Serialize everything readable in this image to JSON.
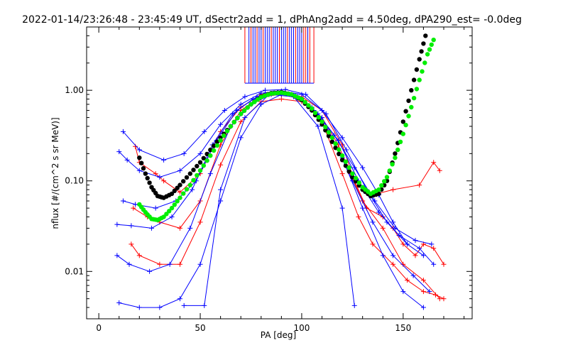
{
  "chart_data": {
    "type": "scatter",
    "title": "2022-01-14/23:26:48 - 23:45:49 UT, dSectr2add = 1, dPhAng2add = 4.50deg, dPA290_est=  -0.0deg",
    "xlabel": "PA [deg]",
    "ylabel": "nflux [#/(cm^2 s sr MeV)]",
    "xlim": [
      -6,
      184
    ],
    "ylim": [
      0.003,
      5
    ],
    "yscale": "log",
    "x_ticks": [
      0,
      50,
      100,
      150
    ],
    "x_tick_labels": [
      "0",
      "50",
      "100",
      "150"
    ],
    "y_ticks": [
      0.01,
      0.1,
      1.0
    ],
    "y_tick_labels": [
      "0.01",
      "0.10",
      "1.00"
    ],
    "grid": false,
    "legend": "none",
    "colors": {
      "red": "#ff0000",
      "blue": "#0000ff",
      "green": "#00ee00",
      "black": "#000000"
    },
    "series": [
      {
        "color": "red",
        "points": [
          [
            18,
            0.24
          ],
          [
            20,
            0.16
          ],
          [
            28,
            0.12
          ],
          [
            32,
            0.1
          ],
          [
            40,
            0.075
          ],
          [
            50,
            0.12
          ],
          [
            60,
            0.35
          ],
          [
            70,
            0.65
          ],
          [
            80,
            0.9
          ],
          [
            90,
            0.95
          ],
          [
            100,
            0.85
          ],
          [
            110,
            0.6
          ],
          [
            120,
            0.25
          ],
          [
            126,
            0.1
          ],
          [
            132,
            0.05
          ],
          [
            140,
            0.04
          ],
          [
            145,
            0.03
          ],
          [
            150,
            0.02
          ],
          [
            156,
            0.015
          ],
          [
            160,
            0.02
          ],
          [
            165,
            0.018
          ],
          [
            170,
            0.012
          ]
        ]
      },
      {
        "color": "red",
        "points": [
          [
            17,
            0.05
          ],
          [
            24,
            0.04
          ],
          [
            30,
            0.035
          ],
          [
            40,
            0.03
          ],
          [
            50,
            0.06
          ],
          [
            60,
            0.25
          ],
          [
            70,
            0.6
          ],
          [
            80,
            0.85
          ],
          [
            90,
            0.9
          ],
          [
            100,
            0.8
          ],
          [
            110,
            0.45
          ],
          [
            120,
            0.12
          ],
          [
            128,
            0.04
          ],
          [
            135,
            0.02
          ],
          [
            145,
            0.012
          ],
          [
            152,
            0.008
          ],
          [
            160,
            0.006
          ],
          [
            166,
            0.0055
          ],
          [
            170,
            0.005
          ]
        ]
      },
      {
        "color": "red",
        "points": [
          [
            16,
            0.02
          ],
          [
            20,
            0.015
          ],
          [
            30,
            0.012
          ],
          [
            40,
            0.012
          ],
          [
            50,
            0.035
          ],
          [
            60,
            0.15
          ],
          [
            70,
            0.45
          ],
          [
            80,
            0.75
          ],
          [
            90,
            0.8
          ],
          [
            100,
            0.75
          ],
          [
            110,
            0.5
          ],
          [
            118,
            0.25
          ],
          [
            124,
            0.12
          ],
          [
            130,
            0.06
          ],
          [
            140,
            0.03
          ],
          [
            150,
            0.012
          ],
          [
            160,
            0.008
          ],
          [
            168,
            0.005
          ]
        ]
      },
      {
        "color": "red",
        "points": [
          [
            135,
            0.07
          ],
          [
            145,
            0.08
          ],
          [
            158,
            0.09
          ],
          [
            165,
            0.16
          ],
          [
            168,
            0.13
          ]
        ]
      },
      {
        "color": "blue",
        "points": [
          [
            10,
            0.21
          ],
          [
            14,
            0.17
          ],
          [
            20,
            0.13
          ],
          [
            30,
            0.11
          ],
          [
            40,
            0.13
          ],
          [
            50,
            0.2
          ],
          [
            60,
            0.42
          ],
          [
            70,
            0.7
          ],
          [
            80,
            0.93
          ],
          [
            90,
            0.98
          ],
          [
            100,
            0.9
          ],
          [
            110,
            0.6
          ],
          [
            120,
            0.3
          ],
          [
            130,
            0.14
          ],
          [
            138,
            0.07
          ],
          [
            145,
            0.035
          ],
          [
            152,
            0.02
          ],
          [
            160,
            0.015
          ]
        ]
      },
      {
        "color": "blue",
        "points": [
          [
            12,
            0.06
          ],
          [
            18,
            0.055
          ],
          [
            28,
            0.05
          ],
          [
            38,
            0.06
          ],
          [
            48,
            0.1
          ],
          [
            58,
            0.28
          ],
          [
            68,
            0.6
          ],
          [
            78,
            0.85
          ],
          [
            88,
            0.95
          ],
          [
            98,
            0.85
          ],
          [
            108,
            0.55
          ],
          [
            118,
            0.28
          ],
          [
            128,
            0.1
          ],
          [
            138,
            0.045
          ],
          [
            148,
            0.025
          ],
          [
            158,
            0.018
          ],
          [
            165,
            0.012
          ]
        ]
      },
      {
        "color": "blue",
        "points": [
          [
            9,
            0.015
          ],
          [
            15,
            0.012
          ],
          [
            25,
            0.01
          ],
          [
            35,
            0.012
          ],
          [
            45,
            0.03
          ],
          [
            55,
            0.12
          ],
          [
            65,
            0.4
          ],
          [
            75,
            0.7
          ],
          [
            85,
            0.9
          ],
          [
            95,
            0.9
          ],
          [
            105,
            0.65
          ],
          [
            115,
            0.3
          ],
          [
            125,
            0.1
          ],
          [
            135,
            0.035
          ],
          [
            145,
            0.015
          ],
          [
            155,
            0.009
          ],
          [
            163,
            0.006
          ]
        ]
      },
      {
        "color": "blue",
        "points": [
          [
            10,
            0.0045
          ],
          [
            20,
            0.004
          ],
          [
            30,
            0.004
          ],
          [
            40,
            0.005
          ],
          [
            50,
            0.012
          ],
          [
            60,
            0.06
          ],
          [
            70,
            0.3
          ],
          [
            80,
            0.7
          ],
          [
            90,
            0.9
          ],
          [
            100,
            0.8
          ],
          [
            110,
            0.5
          ],
          [
            120,
            0.18
          ],
          [
            130,
            0.05
          ],
          [
            140,
            0.015
          ],
          [
            150,
            0.006
          ],
          [
            160,
            0.004
          ]
        ]
      },
      {
        "color": "blue",
        "points": [
          [
            42,
            0.0042
          ],
          [
            52,
            0.0042
          ],
          [
            60,
            0.08
          ],
          [
            72,
            0.5
          ],
          [
            84,
            0.9
          ],
          [
            96,
            0.85
          ],
          [
            108,
            0.4
          ],
          [
            120,
            0.05
          ],
          [
            126,
            0.0042
          ]
        ]
      },
      {
        "color": "blue",
        "points": [
          [
            9,
            0.033
          ],
          [
            16,
            0.032
          ],
          [
            26,
            0.03
          ],
          [
            36,
            0.04
          ],
          [
            46,
            0.08
          ],
          [
            56,
            0.25
          ],
          [
            66,
            0.55
          ],
          [
            76,
            0.8
          ],
          [
            86,
            0.93
          ],
          [
            96,
            0.88
          ],
          [
            106,
            0.6
          ],
          [
            116,
            0.32
          ],
          [
            126,
            0.14
          ],
          [
            136,
            0.06
          ],
          [
            146,
            0.03
          ],
          [
            156,
            0.022
          ],
          [
            164,
            0.02
          ]
        ]
      },
      {
        "color": "blue",
        "points": [
          [
            12,
            0.35
          ],
          [
            20,
            0.22
          ],
          [
            32,
            0.17
          ],
          [
            42,
            0.2
          ],
          [
            52,
            0.35
          ],
          [
            62,
            0.6
          ],
          [
            72,
            0.85
          ],
          [
            82,
            1.0
          ],
          [
            92,
            1.02
          ],
          [
            102,
            0.9
          ],
          [
            112,
            0.55
          ],
          [
            122,
            0.22
          ],
          [
            132,
            0.08
          ],
          [
            142,
            0.035
          ],
          [
            152,
            0.02
          ]
        ]
      }
    ],
    "fit_curves": [
      {
        "color": "black",
        "points": [
          [
            20,
            0.18
          ],
          [
            23,
            0.12
          ],
          [
            26,
            0.085
          ],
          [
            29,
            0.068
          ],
          [
            32,
            0.065
          ],
          [
            36,
            0.072
          ],
          [
            40,
            0.09
          ],
          [
            45,
            0.12
          ],
          [
            50,
            0.16
          ],
          [
            55,
            0.22
          ],
          [
            60,
            0.3
          ],
          [
            65,
            0.4
          ],
          [
            70,
            0.55
          ],
          [
            75,
            0.7
          ],
          [
            80,
            0.85
          ],
          [
            85,
            0.93
          ],
          [
            90,
            0.95
          ],
          [
            95,
            0.9
          ],
          [
            100,
            0.78
          ],
          [
            105,
            0.6
          ],
          [
            110,
            0.42
          ],
          [
            115,
            0.27
          ],
          [
            120,
            0.17
          ],
          [
            125,
            0.11
          ],
          [
            130,
            0.08
          ],
          [
            134,
            0.068
          ],
          [
            138,
            0.072
          ],
          [
            142,
            0.1
          ],
          [
            146,
            0.2
          ],
          [
            150,
            0.45
          ],
          [
            154,
            1.0
          ],
          [
            158,
            2.2
          ],
          [
            161,
            4.0
          ]
        ]
      },
      {
        "color": "green",
        "points": [
          [
            20,
            0.055
          ],
          [
            23,
            0.045
          ],
          [
            26,
            0.038
          ],
          [
            29,
            0.037
          ],
          [
            32,
            0.04
          ],
          [
            36,
            0.05
          ],
          [
            40,
            0.065
          ],
          [
            45,
            0.09
          ],
          [
            50,
            0.13
          ],
          [
            55,
            0.19
          ],
          [
            60,
            0.28
          ],
          [
            65,
            0.4
          ],
          [
            70,
            0.55
          ],
          [
            75,
            0.7
          ],
          [
            80,
            0.84
          ],
          [
            85,
            0.92
          ],
          [
            90,
            0.94
          ],
          [
            95,
            0.9
          ],
          [
            100,
            0.8
          ],
          [
            105,
            0.63
          ],
          [
            110,
            0.45
          ],
          [
            115,
            0.3
          ],
          [
            120,
            0.19
          ],
          [
            125,
            0.12
          ],
          [
            130,
            0.085
          ],
          [
            134,
            0.072
          ],
          [
            138,
            0.08
          ],
          [
            142,
            0.11
          ],
          [
            146,
            0.18
          ],
          [
            150,
            0.33
          ],
          [
            154,
            0.65
          ],
          [
            158,
            1.3
          ],
          [
            162,
            2.5
          ],
          [
            165,
            3.6
          ]
        ]
      }
    ],
    "spikes": [
      {
        "x": 72,
        "color": "red"
      },
      {
        "x": 74,
        "color": "blue"
      },
      {
        "x": 75,
        "color": "red"
      },
      {
        "x": 76,
        "color": "blue"
      },
      {
        "x": 77,
        "color": "blue"
      },
      {
        "x": 78,
        "color": "red"
      },
      {
        "x": 79,
        "color": "blue"
      },
      {
        "x": 80,
        "color": "blue"
      },
      {
        "x": 81,
        "color": "red"
      },
      {
        "x": 82,
        "color": "blue"
      },
      {
        "x": 83,
        "color": "blue"
      },
      {
        "x": 84,
        "color": "blue"
      },
      {
        "x": 85,
        "color": "red"
      },
      {
        "x": 86,
        "color": "blue"
      },
      {
        "x": 87,
        "color": "blue"
      },
      {
        "x": 88,
        "color": "blue"
      },
      {
        "x": 89,
        "color": "red"
      },
      {
        "x": 90,
        "color": "blue"
      },
      {
        "x": 91,
        "color": "blue"
      },
      {
        "x": 92,
        "color": "blue"
      },
      {
        "x": 93,
        "color": "red"
      },
      {
        "x": 94,
        "color": "blue"
      },
      {
        "x": 95,
        "color": "blue"
      },
      {
        "x": 96,
        "color": "blue"
      },
      {
        "x": 97,
        "color": "red"
      },
      {
        "x": 98,
        "color": "blue"
      },
      {
        "x": 99,
        "color": "blue"
      },
      {
        "x": 100,
        "color": "blue"
      },
      {
        "x": 101,
        "color": "red"
      },
      {
        "x": 102,
        "color": "red"
      },
      {
        "x": 103,
        "color": "blue"
      },
      {
        "x": 104,
        "color": "red"
      },
      {
        "x": 106,
        "color": "red"
      }
    ],
    "spike_base_value": 1.2
  }
}
